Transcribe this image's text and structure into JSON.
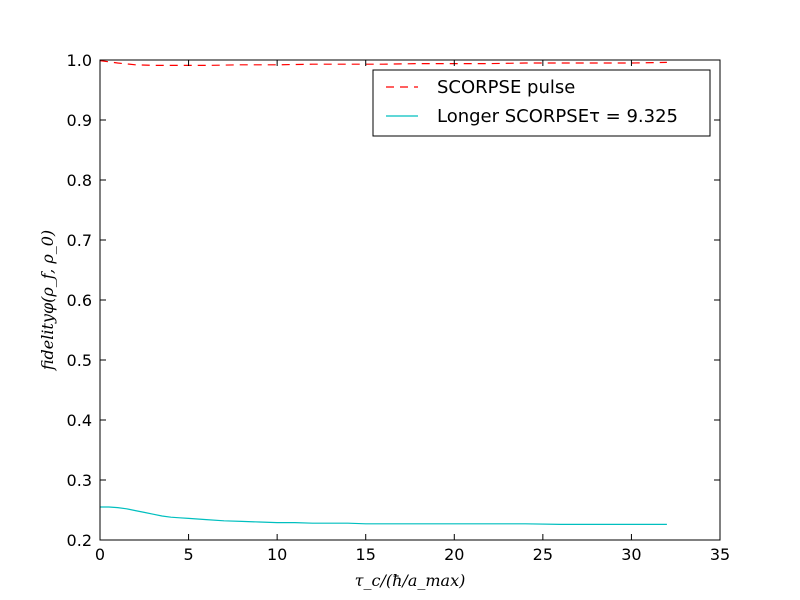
{
  "chart_data": {
    "type": "line",
    "xlabel": "τ_c/(ħ/a_max)",
    "ylabel": "fidelityφ(ρ_f, ρ_0)",
    "xlim": [
      0,
      35
    ],
    "ylim": [
      0.2,
      1.0
    ],
    "xticks": [
      "0",
      "5",
      "10",
      "15",
      "20",
      "25",
      "30",
      "35"
    ],
    "yticks": [
      "0.2",
      "0.3",
      "0.4",
      "0.5",
      "0.6",
      "0.7",
      "0.8",
      "0.9",
      "1.0"
    ],
    "grid": false,
    "legend_position": "top-right",
    "series": [
      {
        "name": "SCORPSE pulse",
        "color": "#ff0000",
        "style": "dashed",
        "x": [
          0,
          1,
          2,
          3,
          4,
          5,
          6,
          8,
          10,
          12,
          14,
          16,
          18,
          20,
          22,
          24,
          26,
          28,
          30,
          32
        ],
        "y": [
          0.999,
          0.995,
          0.992,
          0.991,
          0.991,
          0.991,
          0.991,
          0.992,
          0.992,
          0.993,
          0.993,
          0.993,
          0.994,
          0.994,
          0.994,
          0.995,
          0.995,
          0.995,
          0.995,
          0.996
        ]
      },
      {
        "name": "Longer SCORPSEτ = 9.325",
        "color": "#00bfbf",
        "style": "solid",
        "x": [
          0,
          0.5,
          1,
          1.5,
          2,
          2.5,
          3,
          3.5,
          4,
          4.5,
          5,
          6,
          7,
          8,
          9,
          10,
          11,
          12,
          13,
          14,
          15,
          16,
          17,
          18,
          19,
          20,
          22,
          24,
          26,
          28,
          30,
          32
        ],
        "y": [
          0.255,
          0.255,
          0.254,
          0.252,
          0.249,
          0.246,
          0.243,
          0.24,
          0.238,
          0.237,
          0.236,
          0.234,
          0.232,
          0.231,
          0.23,
          0.229,
          0.229,
          0.228,
          0.228,
          0.228,
          0.227,
          0.227,
          0.227,
          0.227,
          0.227,
          0.227,
          0.227,
          0.227,
          0.226,
          0.226,
          0.226,
          0.226
        ]
      }
    ]
  }
}
